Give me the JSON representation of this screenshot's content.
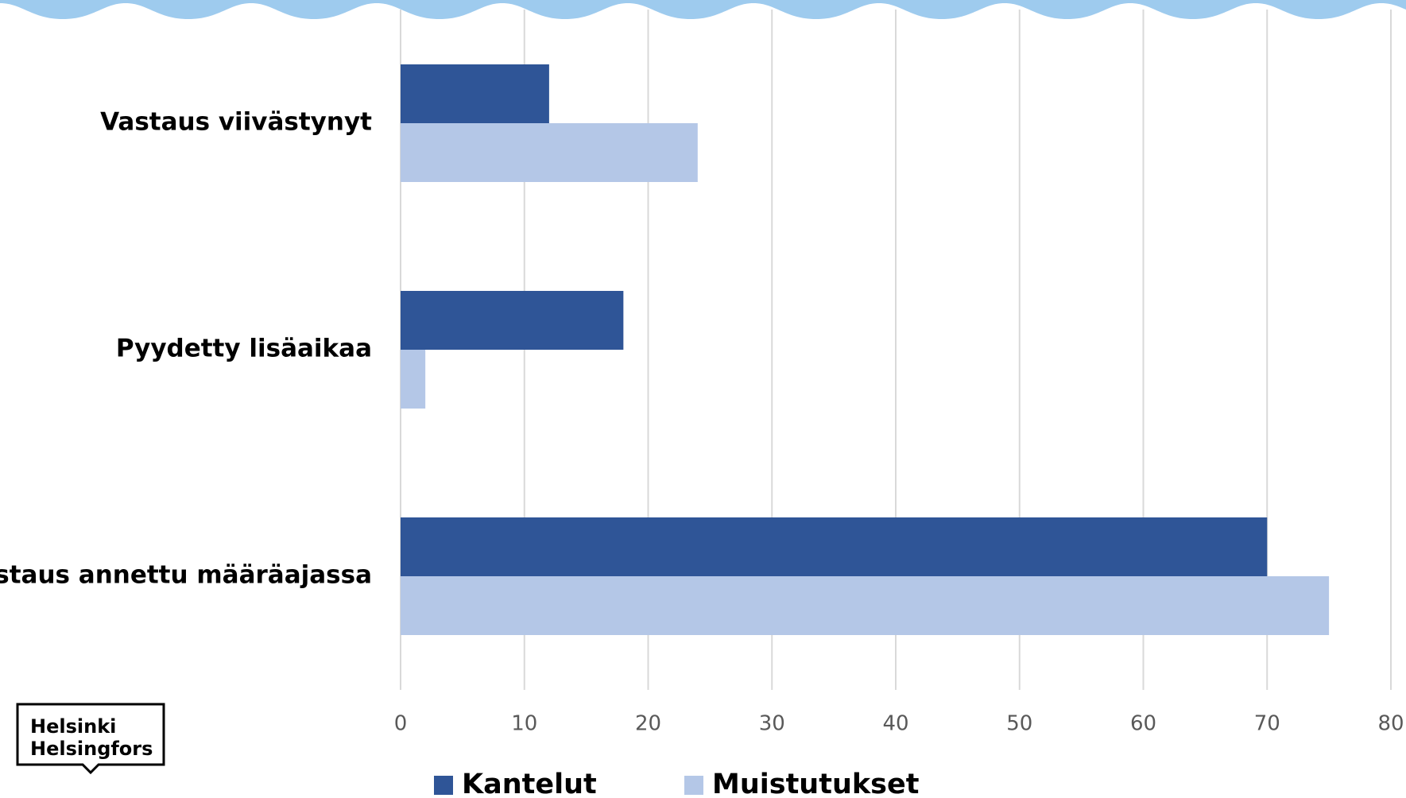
{
  "chart_data": {
    "type": "bar",
    "orientation": "horizontal",
    "categories": [
      "Vastaus viivästynyt",
      "Pyydetty lisäaikaa",
      "Vastaus annettu määräajassa"
    ],
    "series": [
      {
        "name": "Kantelut",
        "color": "#2f5597",
        "values": [
          12,
          18,
          70
        ]
      },
      {
        "name": "Muistutukset",
        "color": "#b4c7e7",
        "values": [
          24,
          2,
          75
        ]
      }
    ],
    "xlim": [
      0,
      80
    ],
    "xticks": [
      0,
      10,
      20,
      30,
      40,
      50,
      60,
      70,
      80
    ],
    "grid": true,
    "legend": "bottom"
  },
  "logo": {
    "lines": [
      "Helsinki",
      "Helsingfors"
    ]
  }
}
